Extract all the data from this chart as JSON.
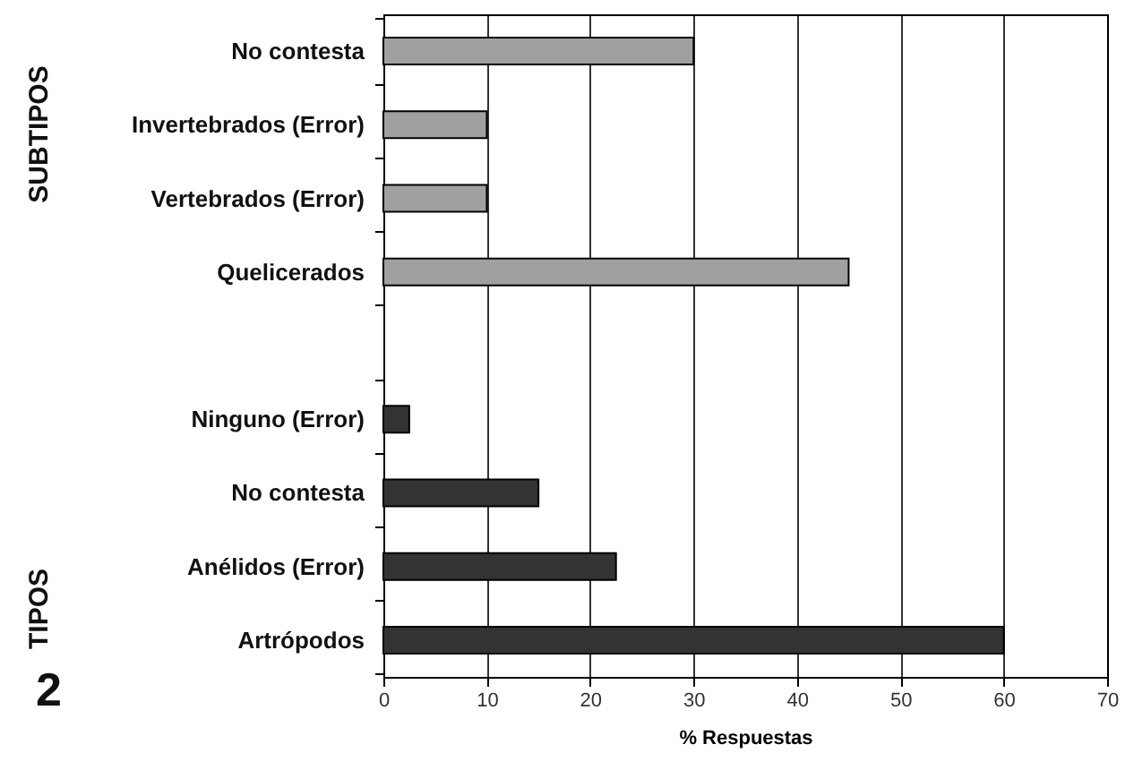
{
  "chart_data": {
    "type": "bar",
    "orientation": "horizontal",
    "xlabel": "% Respuestas",
    "categories": [
      "No contesta",
      "Invertebrados (Error)",
      "Vertebrados (Error)",
      "Quelicerados",
      null,
      "Ninguno (Error)",
      "No contesta",
      "Anélidos (Error)",
      "Artrópodos"
    ],
    "values": [
      30,
      10,
      10,
      45,
      null,
      2.5,
      15,
      22.5,
      60
    ],
    "colors": [
      "#a0a0a0",
      "#a0a0a0",
      "#a0a0a0",
      "#a0a0a0",
      null,
      "#333333",
      "#333333",
      "#333333",
      "#333333"
    ],
    "xlim": [
      0,
      70
    ],
    "xticks": [
      0,
      10,
      20,
      30,
      40,
      50,
      60,
      70
    ],
    "grid": "x",
    "annotations": [
      "SUBTIPOS",
      "TIPOS",
      "2"
    ]
  }
}
